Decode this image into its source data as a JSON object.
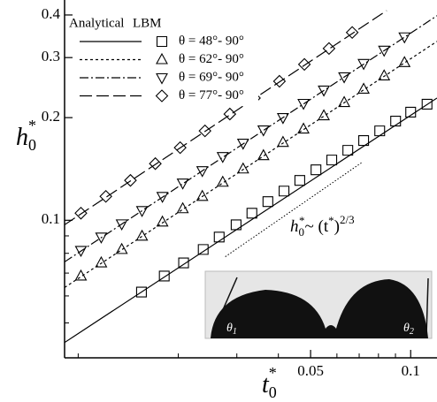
{
  "chart_data": {
    "type": "scatter",
    "x_label": {
      "base": "t",
      "sub": "0",
      "sup": "*"
    },
    "y_label": {
      "base": "h",
      "sub": "0",
      "sup": "*"
    },
    "legend_header": [
      "Analytical",
      "LBM"
    ],
    "log_x": true,
    "log_y": true,
    "xlim": [
      0.0091,
      0.12
    ],
    "ylim": [
      0.0395,
      0.412
    ],
    "xticks": [
      0.05,
      0.1
    ],
    "xticks_minor": [
      0.01,
      0.02,
      0.03,
      0.04,
      0.06,
      0.07,
      0.08,
      0.09
    ],
    "yticks": [
      0.1,
      0.2,
      0.3,
      0.4
    ],
    "yticks_minor": [
      0.05,
      0.06,
      0.07,
      0.08,
      0.09
    ],
    "legend": "upper left",
    "series": [
      {
        "name": "θ = 48°- 90°",
        "color": "#000000",
        "marker": "square",
        "dash": "none",
        "x": [
          0.0155,
          0.01815,
          0.02075,
          0.02377,
          0.02655,
          0.02985,
          0.0333,
          0.0372,
          0.0416,
          0.0464,
          0.0519,
          0.0579,
          0.0647,
          0.0722,
          0.0807,
          0.0901,
          0.1,
          0.112
        ],
        "values": [
          0.0616,
          0.0686,
          0.075,
          0.0821,
          0.0893,
          0.097,
          0.1049,
          0.1134,
          0.1218,
          0.1309,
          0.1406,
          0.1502,
          0.1604,
          0.1713,
          0.1829,
          0.1954,
          0.2075,
          0.219
        ],
        "fit_x": [
          0.0091,
          0.12
        ],
        "fit_values": [
          0.0438,
          0.2283
        ]
      },
      {
        "name": "θ = 62°- 90°",
        "color": "#000000",
        "marker": "triangle-up",
        "dash": "3 3",
        "x": [
          0.01019,
          0.01173,
          0.01352,
          0.01556,
          0.01792,
          0.02063,
          0.02362,
          0.02721,
          0.03133,
          0.03607,
          0.0413,
          0.0476,
          0.0548,
          0.0631,
          0.0722,
          0.0832,
          0.0958
        ],
        "values": [
          0.0686,
          0.075,
          0.0821,
          0.0898,
          0.0988,
          0.1081,
          0.1175,
          0.1293,
          0.1414,
          0.1547,
          0.1692,
          0.1851,
          0.2025,
          0.2215,
          0.2423,
          0.2651,
          0.29
        ],
        "fit_x": [
          0.0091,
          0.12
        ],
        "fit_values": [
          0.0635,
          0.3347
        ]
      },
      {
        "name": "θ = 69°- 90°",
        "color": "#000000",
        "marker": "triangle-down",
        "dash": "10 3 2 3",
        "x": [
          0.01019,
          0.01173,
          0.01352,
          0.01556,
          0.01792,
          0.02063,
          0.02362,
          0.02721,
          0.03133,
          0.03607,
          0.0413,
          0.0476,
          0.0548,
          0.0631,
          0.0722,
          0.0832,
          0.0958
        ],
        "values": [
          0.0816,
          0.0893,
          0.0976,
          0.1068,
          0.1175,
          0.1286,
          0.1398,
          0.1538,
          0.1683,
          0.1841,
          0.2001,
          0.2202,
          0.2409,
          0.2635,
          0.2883,
          0.3153,
          0.345
        ],
        "fit_x": [
          0.0091,
          0.12
        ],
        "fit_values": [
          0.0755,
          0.398
        ]
      },
      {
        "name": "θ = 77°- 90°",
        "color": "#000000",
        "marker": "diamond",
        "dash": "14 5",
        "x": [
          0.01019,
          0.01211,
          0.01436,
          0.01706,
          0.02026,
          0.02406,
          0.02858,
          0.0339,
          0.0403,
          0.0479,
          0.0568,
          0.0667
        ],
        "values": [
          0.1049,
          0.1175,
          0.1309,
          0.1466,
          0.1633,
          0.1829,
          0.2049,
          0.2283,
          0.2557,
          0.2865,
          0.319,
          0.3554
        ],
        "fit_x": [
          0.0091,
          0.0847
        ],
        "fit_values": [
          0.097,
          0.412
        ]
      }
    ],
    "reference_line": {
      "x": [
        0.0277,
        0.0718
      ],
      "values": [
        0.0782,
        0.1484
      ]
    },
    "annotation": {
      "lhs_base": "h",
      "lhs_sub": "0",
      "lhs_sup": "*",
      "rhs": "~ (t",
      "rhs_sup1": "*",
      "rhs_close": ")",
      "exponent": "2/3"
    },
    "inset_labels": {
      "left": {
        "base": "θ",
        "sub": "1"
      },
      "right": {
        "base": "θ",
        "sub": "2"
      }
    }
  }
}
